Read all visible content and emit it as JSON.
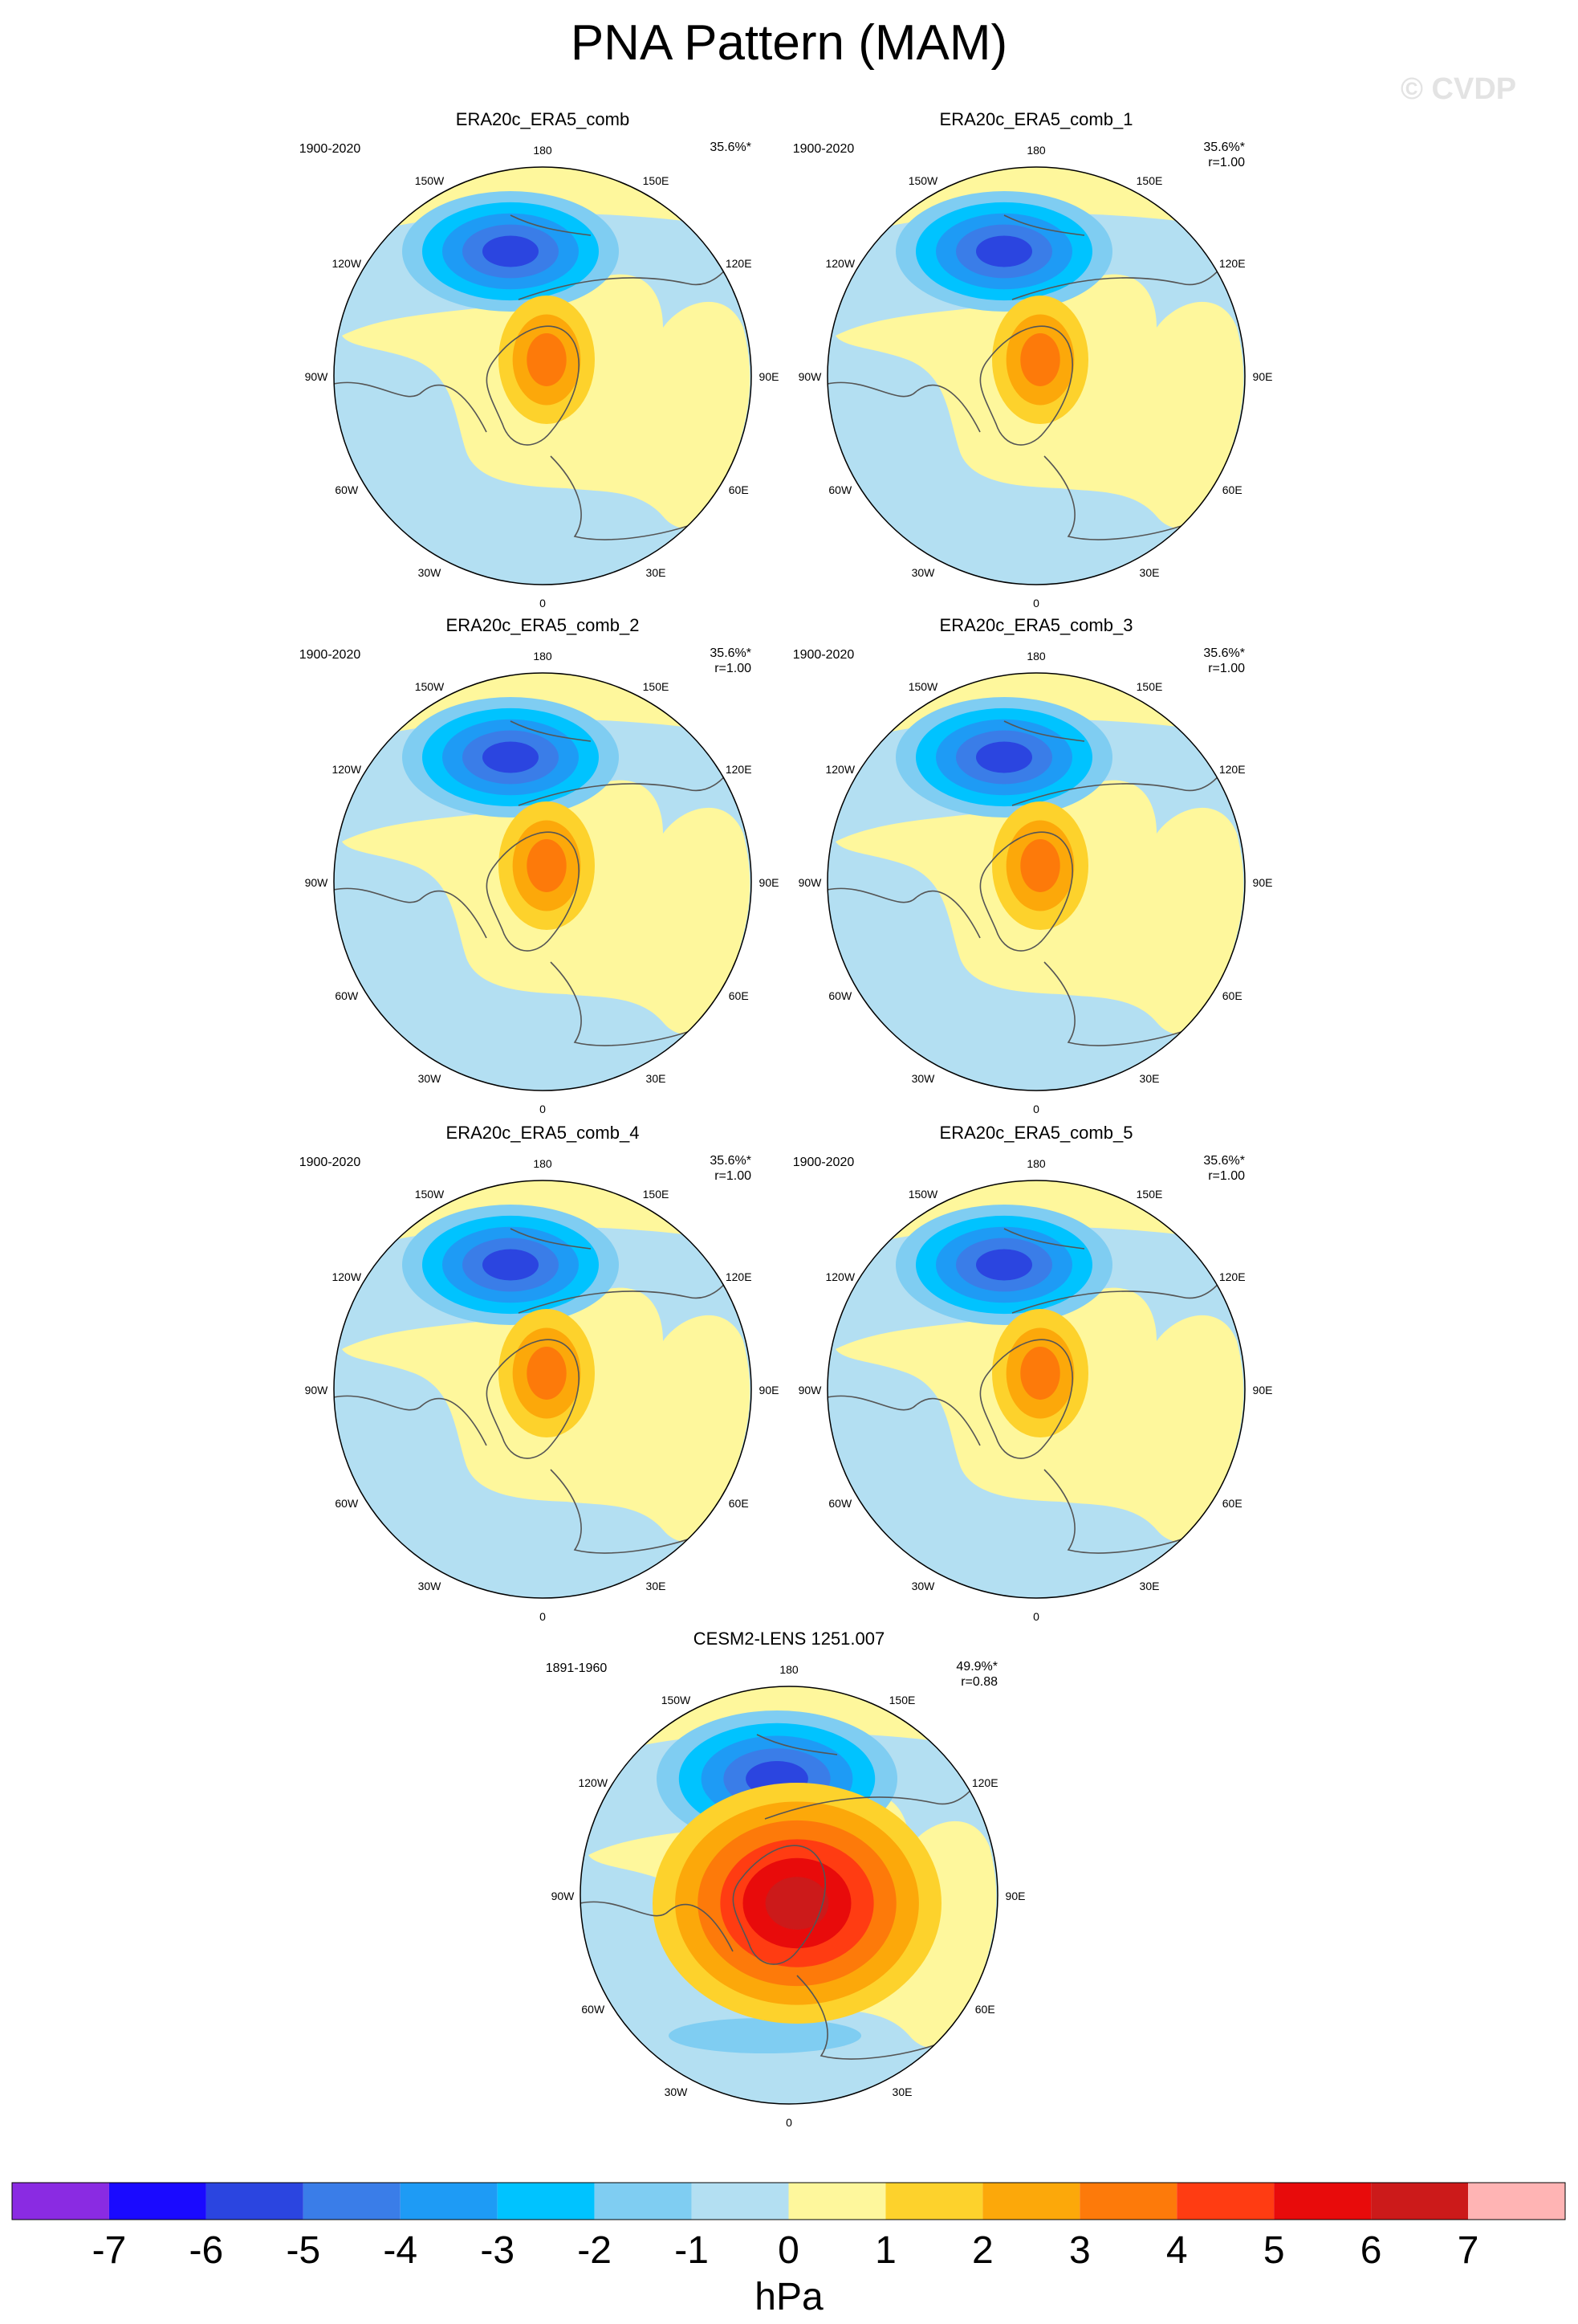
{
  "title": "PNA Pattern (MAM)",
  "watermark": "© CVDP",
  "chart_data": {
    "type": "contour-map",
    "projection": "north-polar-stereographic",
    "variable": "sea level pressure regression",
    "longitude_labels": [
      "180",
      "150E",
      "120E",
      "90E",
      "60E",
      "30E",
      "0",
      "30W",
      "60W",
      "90W",
      "120W",
      "150W"
    ],
    "colorbar": {
      "units": "hPa",
      "ticks": [
        "-7",
        "-6",
        "-5",
        "-4",
        "-3",
        "-2",
        "-1",
        "0",
        "1",
        "2",
        "3",
        "4",
        "5",
        "6",
        "7"
      ],
      "colors": [
        "#8a2be2",
        "#1a0aff",
        "#2b45e0",
        "#3a7de8",
        "#1e9bf5",
        "#00c3ff",
        "#7fcdf2",
        "#b3dff2",
        "#fef79c",
        "#fdd22c",
        "#fca80a",
        "#fd7a0a",
        "#ff3c12",
        "#e80b0b",
        "#cc1a1a",
        "#ffb4b4"
      ]
    },
    "panels": [
      {
        "name": "ERA20c_ERA5_comb",
        "years": "1900-2020",
        "pct": "35.6%*",
        "r": "",
        "neg_max": -5,
        "pos_max": 3
      },
      {
        "name": "ERA20c_ERA5_comb_1",
        "years": "1900-2020",
        "pct": "35.6%*",
        "r": "r=1.00",
        "neg_max": -5,
        "pos_max": 3
      },
      {
        "name": "ERA20c_ERA5_comb_2",
        "years": "1900-2020",
        "pct": "35.6%*",
        "r": "r=1.00",
        "neg_max": -5,
        "pos_max": 3
      },
      {
        "name": "ERA20c_ERA5_comb_3",
        "years": "1900-2020",
        "pct": "35.6%*",
        "r": "r=1.00",
        "neg_max": -5,
        "pos_max": 3
      },
      {
        "name": "ERA20c_ERA5_comb_4",
        "years": "1900-2020",
        "pct": "35.6%*",
        "r": "r=1.00",
        "neg_max": -5,
        "pos_max": 3
      },
      {
        "name": "ERA20c_ERA5_comb_5",
        "years": "1900-2020",
        "pct": "35.6%*",
        "r": "r=1.00",
        "neg_max": -5,
        "pos_max": 3
      },
      {
        "name": "CESM2-LENS 1251.007",
        "years": "1891-1960",
        "pct": "49.9%*",
        "r": "r=0.88",
        "neg_max": -5,
        "pos_max": 6
      }
    ]
  }
}
